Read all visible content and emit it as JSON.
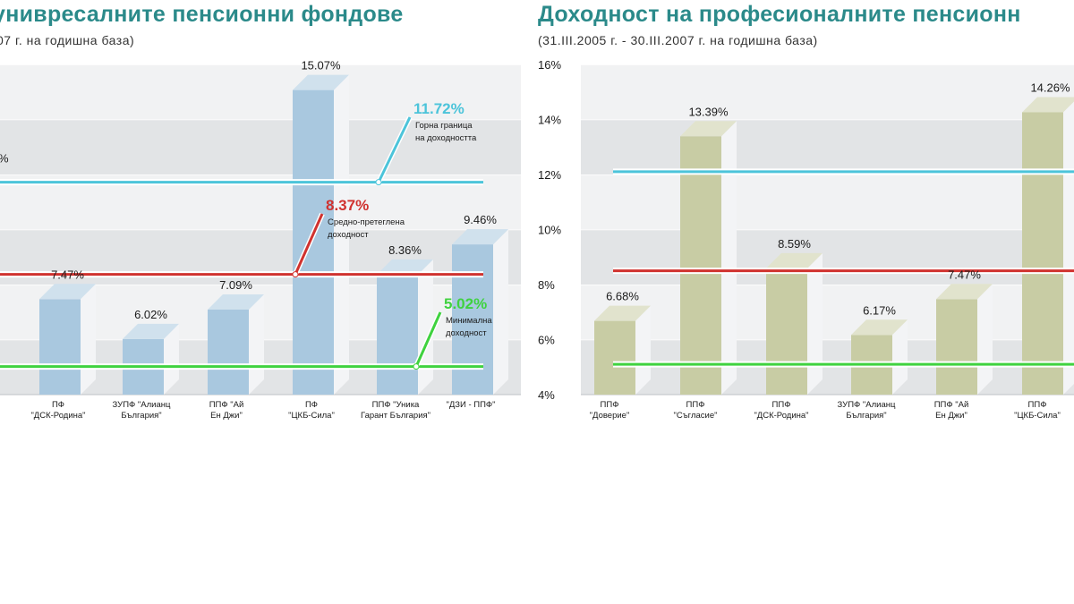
{
  "chart_data": [
    {
      "type": "bar",
      "title": "унивресалните пенсионни фондове",
      "subtitle": "07 г. на годишна база)",
      "categories": [
        [
          "ПФ",
          "\"ДСК-Родина\""
        ],
        [
          "ЗУПФ \"Алианц",
          "България\""
        ],
        [
          "ППФ \"Ай",
          "Ен Джи\""
        ],
        [
          "ПФ",
          "\"ЦКБ-Сила\""
        ],
        [
          "ППФ \"Уника",
          "Гарант България\""
        ],
        [
          "\"ДЗИ - ППФ\""
        ]
      ],
      "values": [
        7.47,
        6.02,
        7.09,
        15.07,
        8.36,
        9.46
      ],
      "labels": [
        "7.47%",
        "6.02%",
        "7.09%",
        "15.07%",
        "8.36%",
        "9.46%"
      ],
      "ylim": [
        4,
        16
      ],
      "bar_color": "#a9c8df",
      "reference_lines": [
        {
          "value": 11.72,
          "label": "11.72%",
          "text": [
            "Горна граница",
            "на доходността"
          ],
          "color": "#4cc4da"
        },
        {
          "value": 8.37,
          "label": "8.37%",
          "text": [
            "Средно-претеглена",
            "доходност"
          ],
          "color": "#d0322f"
        },
        {
          "value": 5.02,
          "label": "5.02%",
          "text": [
            "Минимална",
            "доходност"
          ],
          "color": "#3fd23f"
        }
      ],
      "left_partial_label": "%"
    },
    {
      "type": "bar",
      "title": "Доходност на професионалните пенсионн",
      "subtitle": "(31.III.2005 г. - 30.III.2007 г. на годишна база)",
      "categories": [
        [
          "ППФ",
          "\"Доверие\""
        ],
        [
          "ППФ",
          "\"Съгласие\""
        ],
        [
          "ППФ",
          "\"ДСК-Родина\""
        ],
        [
          "ЗУПФ \"Алианц",
          "България\""
        ],
        [
          "ППФ \"Ай",
          "Ен Джи\""
        ],
        [
          "ППФ",
          "\"ЦКБ-Сила\""
        ]
      ],
      "values": [
        6.68,
        13.39,
        8.59,
        6.17,
        7.47,
        14.26
      ],
      "labels": [
        "6.68%",
        "13.39%",
        "8.59%",
        "6.17%",
        "7.47%",
        "14.26%"
      ],
      "yticks": [
        4,
        6,
        8,
        10,
        12,
        14,
        16
      ],
      "ytick_labels": [
        "4%",
        "6%",
        "8%",
        "10%",
        "12%",
        "14%",
        "16%"
      ],
      "ylim": [
        4,
        16
      ],
      "bar_color": "#c8cca4",
      "reference_lines": [
        {
          "value": 12.1,
          "color": "#4cc4da"
        },
        {
          "value": 8.5,
          "color": "#d0322f"
        },
        {
          "value": 5.1,
          "color": "#3fd23f"
        }
      ]
    }
  ],
  "ui": {
    "left_title": "унивресалните пенсионни фондове",
    "left_subtitle": "07 г. на годишна база)",
    "right_title": "Доходност на професионалните пенсионн",
    "right_subtitle": "(31.III.2005 г. - 30.III.2007 г. на годишна база)"
  }
}
